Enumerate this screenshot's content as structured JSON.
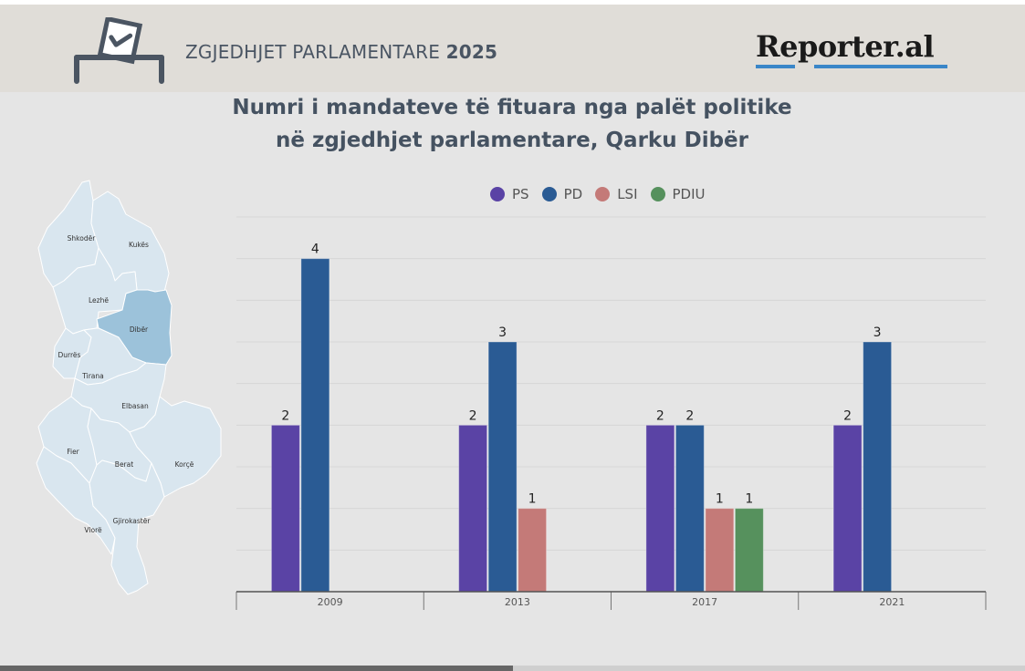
{
  "header": {
    "title_regular": "ZGJEDHJET PARLAMENTARE ",
    "title_bold": "2025",
    "icon": "ballot-box-icon",
    "logo": "Reporter.al"
  },
  "title_line1": "Numri i mandateve të fituara nga palët politike",
  "title_line2": "në zgjedhjet parlamentare, Qarku Dibër",
  "map": {
    "highlighted": "Dibër",
    "highlight_color": "#9cc2da",
    "base_color": "#d9e6ef",
    "regions": [
      "Shkodër",
      "Kukës",
      "Lezhë",
      "Dibër",
      "Durrës",
      "Tirana",
      "Elbasan",
      "Fier",
      "Berat",
      "Korçë",
      "Vlorë",
      "Gjirokastër"
    ]
  },
  "progress": {
    "value": 0.5
  },
  "chart_data": {
    "type": "bar",
    "title": "Numri i mandateve të fituara nga palët politike në zgjedhjet parlamentare, Qarku Dibër",
    "xlabel": "",
    "ylabel": "",
    "categories": [
      "2009",
      "2013",
      "2017",
      "2021"
    ],
    "series": [
      {
        "name": "PS",
        "color": "#5a43a5",
        "values": [
          2,
          2,
          2,
          2
        ]
      },
      {
        "name": "PD",
        "color": "#2a5b94",
        "values": [
          4,
          3,
          2,
          3
        ]
      },
      {
        "name": "LSI",
        "color": "#c47a78",
        "values": [
          null,
          1,
          1,
          null
        ]
      },
      {
        "name": "PDIU",
        "color": "#56915d",
        "values": [
          null,
          null,
          1,
          null
        ]
      }
    ],
    "ylim": [
      0,
      4.5
    ],
    "grid": true,
    "legend": "top-center",
    "data_labels": true
  }
}
